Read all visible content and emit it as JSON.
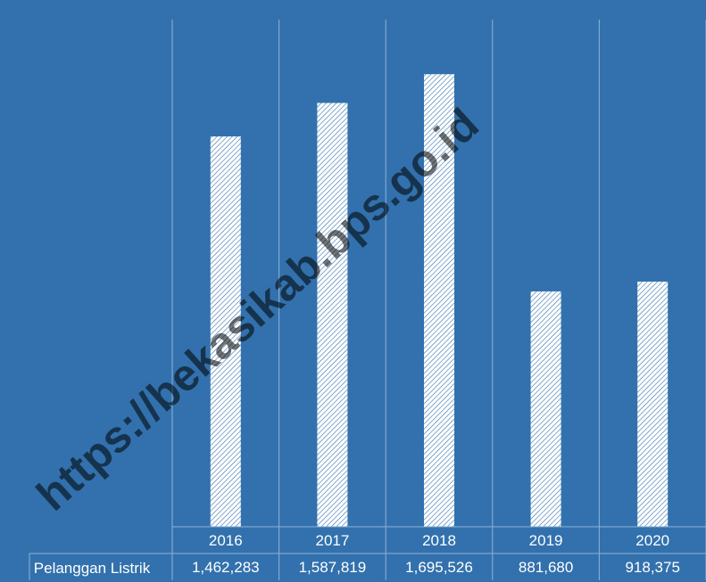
{
  "chart_data": {
    "type": "bar",
    "categories": [
      "2016",
      "2017",
      "2018",
      "2019",
      "2020"
    ],
    "series": [
      {
        "name": "Pelanggan Listrik",
        "values": [
          1462283,
          1587819,
          1695526,
          881680,
          918375
        ],
        "labels": [
          "1,462,283",
          "1,587,819",
          "1,695,526",
          "881,680",
          "918,375"
        ]
      }
    ],
    "title": "",
    "xlabel": "",
    "ylabel": "",
    "ylim": [
      0,
      1900000
    ],
    "grid": "vertical",
    "legend": "data-table-left",
    "bar_fill": "hatched-white",
    "colors": {
      "background": "#3271ad",
      "bar": "#ffffff",
      "lines": "#8fb2d6",
      "text": "#ffffff"
    }
  },
  "watermark": "https://bekasikab.bps.go.id"
}
